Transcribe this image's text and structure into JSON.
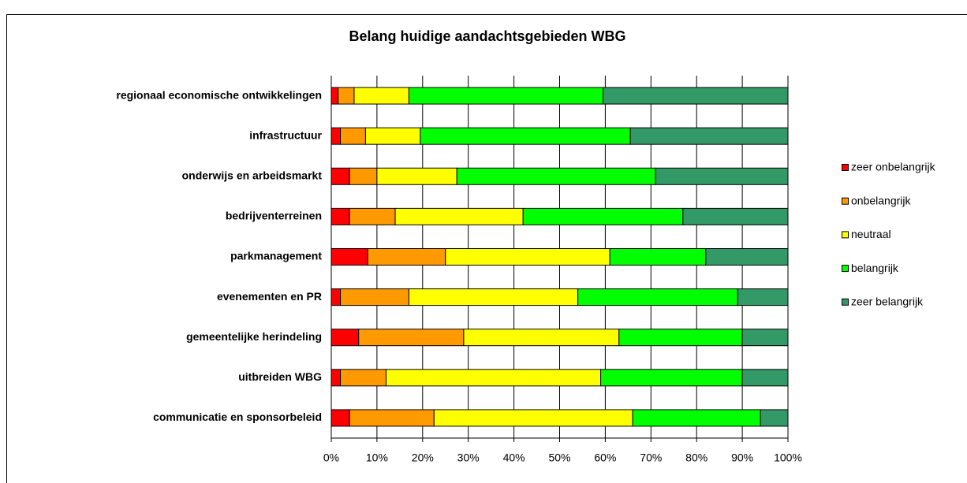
{
  "chart_data": {
    "type": "stacked_bar_horizontal",
    "title": "Belang huidige aandachtsgebieden WBG",
    "categories": [
      "regionaal economische ontwikkelingen",
      "infrastructuur",
      "onderwijs en arbeidsmarkt",
      "bedrijventerreinen",
      "parkmanagement",
      "evenementen en PR",
      "gemeentelijke herindeling",
      "uitbreiden WBG",
      "communicatie en sponsorbeleid"
    ],
    "series": [
      {
        "name": "zeer onbelangrijk",
        "color": "#ff0000",
        "values": [
          1.5,
          2,
          4,
          4,
          8,
          2,
          6,
          2,
          4
        ]
      },
      {
        "name": "onbelangrijk",
        "color": "#ff9900",
        "values": [
          3.5,
          5.5,
          6,
          10,
          17,
          15,
          23,
          10,
          18.5
        ]
      },
      {
        "name": "neutraal",
        "color": "#ffff00",
        "values": [
          12,
          12,
          17.5,
          28,
          36,
          37,
          34,
          47,
          43.5
        ]
      },
      {
        "name": "belangrijk",
        "color": "#00ff00",
        "values": [
          42.5,
          46,
          43.5,
          35,
          21,
          35,
          27,
          31,
          28
        ]
      },
      {
        "name": "zeer belangrijk",
        "color": "#339966",
        "values": [
          40.5,
          34.5,
          29,
          23,
          18,
          11,
          10,
          10,
          6
        ]
      }
    ],
    "xlim": [
      0,
      100
    ],
    "xticks": [
      {
        "value": 0,
        "label": "0%"
      },
      {
        "value": 10,
        "label": "10%"
      },
      {
        "value": 20,
        "label": "20%"
      },
      {
        "value": 30,
        "label": "30%"
      },
      {
        "value": 40,
        "label": "40%"
      },
      {
        "value": 50,
        "label": "50%"
      },
      {
        "value": 60,
        "label": "60%"
      },
      {
        "value": 70,
        "label": "70%"
      },
      {
        "value": 80,
        "label": "80%"
      },
      {
        "value": 90,
        "label": "90%"
      },
      {
        "value": 100,
        "label": "100%"
      }
    ],
    "grid": true,
    "legend": "right"
  }
}
